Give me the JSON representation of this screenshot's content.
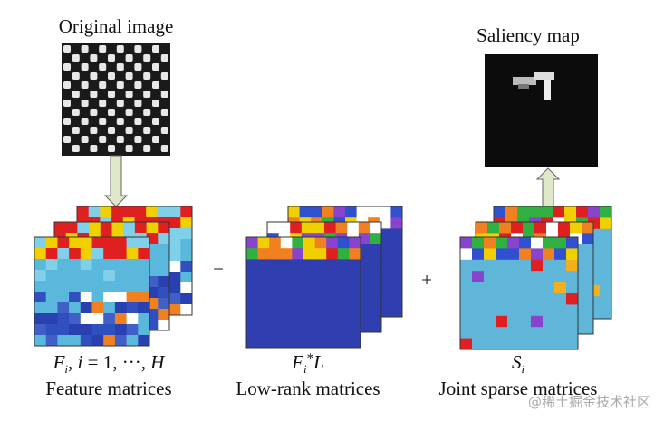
{
  "original": {
    "title": "Original image"
  },
  "saliency": {
    "title": "Saliency map"
  },
  "operators": {
    "equals": "=",
    "plus": "+"
  },
  "feature": {
    "formula": {
      "symbol": "F",
      "subscript": "i",
      "rest_prefix": ", ",
      "index": "i",
      "rest": " = 1, ···, ",
      "upper": "H"
    },
    "label": "Feature matrices"
  },
  "low_rank": {
    "formula": {
      "symbol": "F",
      "subscript": "i",
      "star": "*",
      "factor": "L"
    },
    "label": "Low-rank matrices"
  },
  "sparse": {
    "formula": {
      "symbol": "S",
      "subscript": "i"
    },
    "label": "Joint sparse matrices"
  },
  "watermark": "@稀土掘金技术社区"
}
